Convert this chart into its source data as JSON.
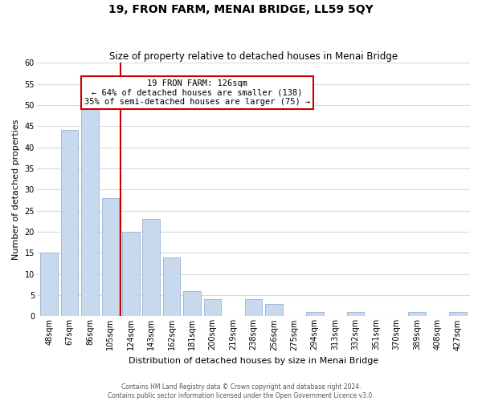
{
  "title": "19, FRON FARM, MENAI BRIDGE, LL59 5QY",
  "subtitle": "Size of property relative to detached houses in Menai Bridge",
  "xlabel": "Distribution of detached houses by size in Menai Bridge",
  "ylabel": "Number of detached properties",
  "bar_labels": [
    "48sqm",
    "67sqm",
    "86sqm",
    "105sqm",
    "124sqm",
    "143sqm",
    "162sqm",
    "181sqm",
    "200sqm",
    "219sqm",
    "238sqm",
    "256sqm",
    "275sqm",
    "294sqm",
    "313sqm",
    "332sqm",
    "351sqm",
    "370sqm",
    "389sqm",
    "408sqm",
    "427sqm"
  ],
  "bar_values": [
    15,
    44,
    50,
    28,
    20,
    23,
    14,
    6,
    4,
    0,
    4,
    3,
    0,
    1,
    0,
    1,
    0,
    0,
    1,
    0,
    1
  ],
  "red_line_after_index": 3,
  "bar_color": "#c9d9ed",
  "bar_edge_color": "#a0b8d8",
  "highlight_line_color": "#cc0000",
  "annotation_line1": "19 FRON FARM: 126sqm",
  "annotation_line2": "← 64% of detached houses are smaller (138)",
  "annotation_line3": "35% of semi-detached houses are larger (75) →",
  "annotation_box_edge": "#cc0000",
  "ylim": [
    0,
    60
  ],
  "yticks": [
    0,
    5,
    10,
    15,
    20,
    25,
    30,
    35,
    40,
    45,
    50,
    55,
    60
  ],
  "footer_line1": "Contains HM Land Registry data © Crown copyright and database right 2024.",
  "footer_line2": "Contains public sector information licensed under the Open Government Licence v3.0.",
  "bg_color": "#ffffff",
  "grid_color": "#d0dce8",
  "title_fontsize": 10,
  "subtitle_fontsize": 8.5,
  "xlabel_fontsize": 8,
  "ylabel_fontsize": 8,
  "tick_fontsize": 7,
  "annotation_fontsize": 7.5,
  "footer_fontsize": 5.5
}
